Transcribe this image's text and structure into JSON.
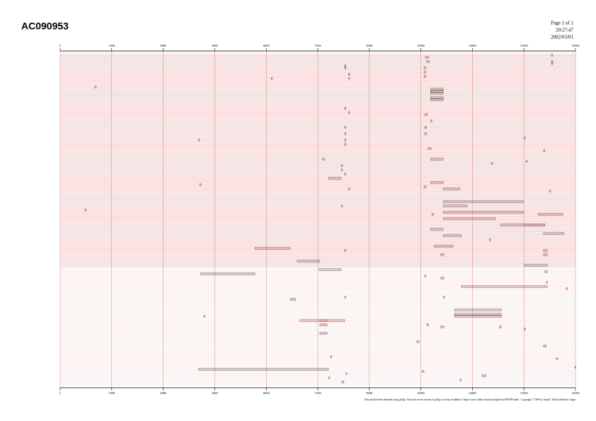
{
  "header": {
    "title": "AC090953",
    "page": "Page 1 of 1",
    "time": "20:27:47",
    "date": "2002/03/01"
  },
  "axis": {
    "xlim": [
      0,
      150000
    ],
    "xticks": [
      0,
      15000,
      30000,
      45000,
      60000,
      75000,
      90000,
      105000,
      120000,
      135000,
      150000
    ]
  },
  "features": [
    [
      0,
      143000,
      143400
    ],
    [
      1,
      106300,
      107300
    ],
    [
      3,
      143000,
      143400
    ],
    [
      3,
      106700,
      107500
    ],
    [
      4,
      143000,
      143400
    ],
    [
      5,
      82800,
      83200
    ],
    [
      6,
      82800,
      83200
    ],
    [
      6,
      105900,
      106500
    ],
    [
      8,
      105900,
      106500
    ],
    [
      9,
      83900,
      84300
    ],
    [
      10,
      105900,
      106500
    ],
    [
      11,
      83900,
      84300
    ],
    [
      11,
      61400,
      61800
    ],
    [
      15,
      10100,
      10500
    ],
    [
      16,
      107800,
      111500
    ],
    [
      17,
      107800,
      111500
    ],
    [
      18,
      107800,
      111500
    ],
    [
      20,
      107800,
      111500
    ],
    [
      21,
      107800,
      111500
    ],
    [
      25,
      82800,
      83200
    ],
    [
      27,
      83900,
      84300
    ],
    [
      28,
      106100,
      106900
    ],
    [
      31,
      107800,
      108200
    ],
    [
      34,
      82800,
      83200
    ],
    [
      37,
      82800,
      83200
    ],
    [
      34,
      106100,
      106700
    ],
    [
      37,
      106100,
      106700
    ],
    [
      40,
      40200,
      40600
    ],
    [
      40,
      82800,
      83200
    ],
    [
      42,
      82800,
      83200
    ],
    [
      39,
      135000,
      135400
    ],
    [
      44,
      107100,
      108000
    ],
    [
      45,
      140700,
      141100
    ],
    [
      49,
      76400,
      76900
    ],
    [
      49,
      107800,
      111500
    ],
    [
      51,
      125500,
      125900
    ],
    [
      50,
      135600,
      136000
    ],
    [
      52,
      81800,
      82200
    ],
    [
      54,
      81800,
      82200
    ],
    [
      56,
      82800,
      83200
    ],
    [
      58,
      78100,
      81800
    ],
    [
      60,
      107800,
      111500
    ],
    [
      61,
      40600,
      41000
    ],
    [
      63,
      83900,
      84300
    ],
    [
      63,
      111500,
      116400
    ],
    [
      64,
      142400,
      142800
    ],
    [
      62,
      105900,
      106500
    ],
    [
      69,
      111500,
      135000
    ],
    [
      71,
      111500,
      118500
    ],
    [
      74,
      111500,
      135000
    ],
    [
      75,
      108200,
      108600
    ],
    [
      77,
      111500,
      126700
    ],
    [
      75,
      139100,
      146300
    ],
    [
      80,
      128200,
      141100
    ],
    [
      80,
      135000,
      141100
    ],
    [
      73,
      7200,
      7600
    ],
    [
      71,
      81800,
      82200
    ],
    [
      82,
      107800,
      111500
    ],
    [
      85,
      111500,
      116800
    ],
    [
      87,
      124900,
      125300
    ],
    [
      84,
      140700,
      146700
    ],
    [
      91,
      56700,
      67000
    ],
    [
      92,
      82800,
      83200
    ],
    [
      90,
      108800,
      114400
    ],
    [
      92,
      140700,
      141800
    ],
    [
      94,
      140700,
      141800
    ],
    [
      94,
      110800,
      111700
    ],
    [
      97,
      69000,
      75600
    ],
    [
      99,
      135000,
      141800
    ],
    [
      101,
      75400,
      81800
    ],
    [
      102,
      141100,
      141800
    ],
    [
      103,
      40800,
      56700
    ],
    [
      109,
      116800,
      141800
    ],
    [
      104,
      106100,
      106500
    ],
    [
      105,
      110800,
      111700
    ],
    [
      107,
      141500,
      141800
    ],
    [
      115,
      67000,
      68600
    ],
    [
      114,
      82800,
      83200
    ],
    [
      114,
      111500,
      111900
    ],
    [
      110,
      147300,
      147700
    ],
    [
      120,
      114800,
      128400
    ],
    [
      122,
      114800,
      128400
    ],
    [
      123,
      114800,
      128400
    ],
    [
      125,
      75600,
      77700
    ],
    [
      125,
      69800,
      82800
    ],
    [
      123,
      41800,
      42200
    ],
    [
      127,
      75600,
      77700
    ],
    [
      127,
      106700,
      107300
    ],
    [
      128,
      127900,
      128400
    ],
    [
      128,
      110800,
      111700
    ],
    [
      129,
      135000,
      135400
    ],
    [
      131,
      75600,
      77700
    ],
    [
      135,
      103800,
      104500
    ],
    [
      137,
      140700,
      141500
    ],
    [
      142,
      78700,
      79100
    ],
    [
      148,
      40200,
      78100
    ],
    [
      150,
      83200,
      83400
    ],
    [
      149,
      105300,
      105900
    ],
    [
      151,
      122800,
      124000
    ],
    [
      152,
      78100,
      78500
    ],
    [
      147,
      149800,
      150000
    ],
    [
      153,
      116400,
      116800
    ],
    [
      154,
      82000,
      82600
    ],
    [
      143,
      144400,
      144900
    ]
  ],
  "footer": "This plot has been obtained using gff2ps. The most recent version of gff2ps is freely available at \"http://www1.imim.es/software/gfftools/GFF2PS.html\". Copyright © 1999 by Josep F. Abril & Roderic Guigó"
}
